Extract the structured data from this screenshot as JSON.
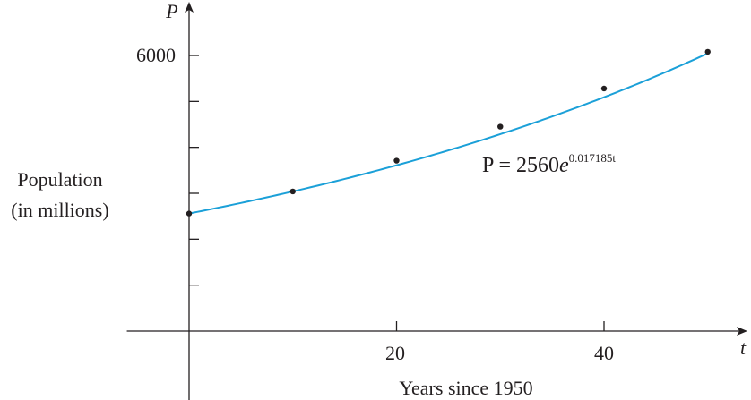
{
  "chart_data": {
    "type": "scatter",
    "title": "",
    "xlabel": "Years since 1950",
    "ylabel_lines": [
      "Population",
      "(in millions)"
    ],
    "x_axis_var": "t",
    "y_axis_var": "P",
    "xlim": [
      -6,
      53
    ],
    "ylim": [
      0,
      6300
    ],
    "x_ticks": [
      20,
      40
    ],
    "y_ticks": [
      1000,
      2000,
      3000,
      4000,
      5000,
      6000
    ],
    "y_tick_labels": [
      {
        "value": 6000,
        "label": "6000"
      }
    ],
    "x_tick_labels": [
      {
        "value": 20,
        "label": "20"
      },
      {
        "value": 40,
        "label": "40"
      }
    ],
    "series": [
      {
        "kind": "points",
        "x": [
          0,
          10,
          20,
          30,
          40,
          50
        ],
        "y": [
          2560,
          3040,
          3710,
          4450,
          5280,
          6080
        ]
      },
      {
        "kind": "curve",
        "model": {
          "a": 2560,
          "k": 0.017185
        },
        "x_range": [
          0,
          50
        ]
      }
    ],
    "annotation": {
      "lhs": "P = 2560",
      "base": "e",
      "exponent": "0.017185t"
    },
    "grid": false,
    "colors": {
      "curve": "#1ba0d8",
      "points": "#231f20",
      "axes": "#231f20"
    }
  }
}
